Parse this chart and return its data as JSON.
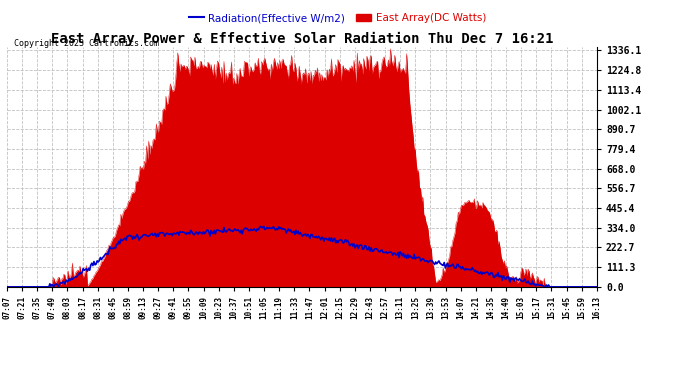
{
  "title": "East Array Power & Effective Solar Radiation Thu Dec 7 16:21",
  "copyright": "Copyright 2023 Cartronics.com",
  "legend_radiation": "Radiation(Effective W/m2)",
  "legend_array": "East Array(DC Watts)",
  "ymax": 1336.1,
  "ymin": 0.0,
  "yticks": [
    0.0,
    111.3,
    222.7,
    334.0,
    445.4,
    556.7,
    668.0,
    779.4,
    890.7,
    1002.1,
    1113.4,
    1224.8,
    1336.1
  ],
  "background_color": "#ffffff",
  "grid_color": "#bbbbbb",
  "red_color": "#dd0000",
  "blue_color": "#0000cc",
  "title_color": "#000000",
  "copyright_color": "#000000",
  "x_labels": [
    "07:07",
    "07:21",
    "07:35",
    "07:49",
    "08:03",
    "08:17",
    "08:31",
    "08:45",
    "08:59",
    "09:13",
    "09:27",
    "09:41",
    "09:55",
    "10:09",
    "10:23",
    "10:37",
    "10:51",
    "11:05",
    "11:19",
    "11:33",
    "11:47",
    "12:01",
    "12:15",
    "12:29",
    "12:43",
    "12:57",
    "13:11",
    "13:25",
    "13:39",
    "13:53",
    "14:07",
    "14:21",
    "14:35",
    "14:49",
    "15:03",
    "15:17",
    "15:31",
    "15:45",
    "15:59",
    "16:13"
  ],
  "n_points": 550
}
